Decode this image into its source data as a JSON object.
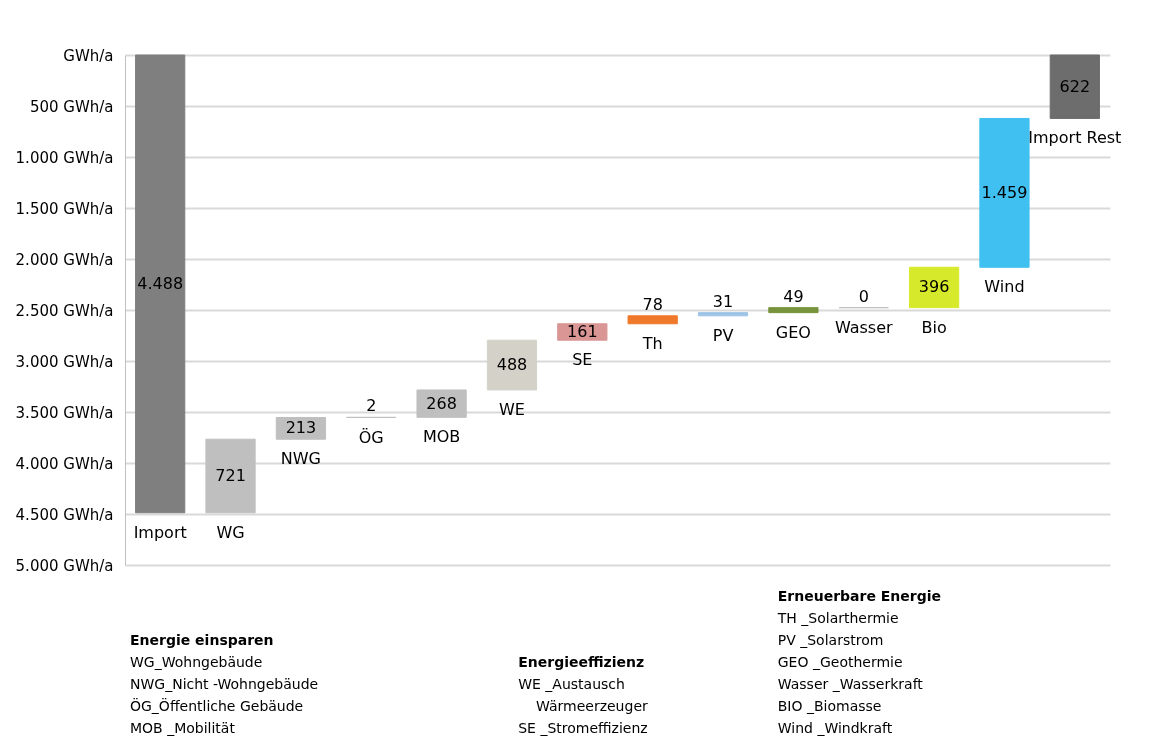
{
  "chart_data": {
    "type": "bar",
    "categories": [
      "Import",
      "WG",
      "NWG",
      "ÖG",
      "MOB",
      "WE",
      "SE",
      "Th",
      "PV",
      "GEO",
      "Wasser",
      "Bio",
      "Wind",
      "Import Rest"
    ],
    "values": [
      4488,
      721,
      213,
      2,
      268,
      488,
      161,
      78,
      31,
      49,
      0,
      396,
      1459,
      622
    ],
    "base": [
      0,
      3767,
      3554,
      3552,
      3284,
      2796,
      2635,
      2557,
      2526,
      2477,
      2477,
      2081,
      622,
      0
    ],
    "colors": [
      "#7f7f7f",
      "#bfbfbf",
      "#bfbfbf",
      "#bfbfbf",
      "#bfbfbf",
      "#d4d2c8",
      "#d99694",
      "#f0782a",
      "#9dc3e6",
      "#77933c",
      "#bfbfbf",
      "#d7e92b",
      "#3fc0f0",
      "#6d6d6d"
    ],
    "value_labels": [
      "4.488",
      "721",
      "213",
      "2",
      "268",
      "488",
      "161",
      "78",
      "31",
      "49",
      "0",
      "396",
      "1.459",
      "622"
    ],
    "ylim": [
      5000,
      0
    ],
    "yticks": [
      {
        "value": 0,
        "label": "GWh/a"
      },
      {
        "value": 500,
        "label": "500  GWh/a"
      },
      {
        "value": 1000,
        "label": "1.000  GWh/a"
      },
      {
        "value": 1500,
        "label": "1.500  GWh/a"
      },
      {
        "value": 2000,
        "label": "2.000  GWh/a"
      },
      {
        "value": 2500,
        "label": "2.500  GWh/a"
      },
      {
        "value": 3000,
        "label": "3.000  GWh/a"
      },
      {
        "value": 3500,
        "label": "3.500  GWh/a"
      },
      {
        "value": 4000,
        "label": "4.000  GWh/a"
      },
      {
        "value": 4500,
        "label": "4.500  GWh/a"
      },
      {
        "value": 5000,
        "label": "5.000  GWh/a"
      }
    ],
    "grid": "y",
    "annotations": [
      "Energie einsparen\nWG_Wohngebäude\nNWG_Nicht -Wohngebäude\nÖG_Öffentliche Gebäude\nMOB _Mobilität",
      "Energieeffizienz\nWE _Austausch\n    Wärmeerzeuger\nSE _Stromeffizienz",
      "Erneuerbare Energie\nTH _Solarthermie\nPV _Solarstrom\nGEO _Geothermie\nWasser _Wasserkraft\nBIO _Biomasse\nWind _Windkraft"
    ]
  }
}
